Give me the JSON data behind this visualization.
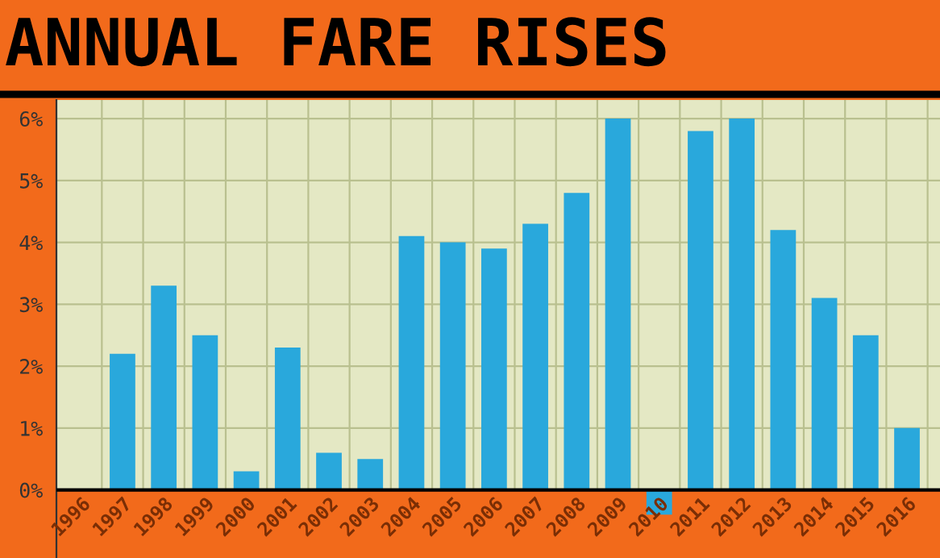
{
  "chart_data": {
    "type": "bar",
    "title": "ANNUAL FARE RISES",
    "categories": [
      "1996",
      "1997",
      "1998",
      "1999",
      "2000",
      "2001",
      "2002",
      "2003",
      "2004",
      "2005",
      "2006",
      "2007",
      "2008",
      "2009",
      "2010",
      "2011",
      "2012",
      "2013",
      "2014",
      "2015",
      "2016"
    ],
    "series": [
      {
        "color": "#29a8dc",
        "values": [
          null,
          2.2,
          3.3,
          2.5,
          0.3,
          2.3,
          0.6,
          0.5,
          4.1,
          4.0,
          3.9,
          4.3,
          4.8,
          6.0,
          -0.4,
          5.8,
          6.0,
          4.2,
          3.1,
          2.5,
          1.0
        ]
      }
    ],
    "ylim": [
      -1.1,
      6.3
    ],
    "yticks": [
      {
        "value": 0,
        "label": "0%"
      },
      {
        "value": 1,
        "label": "1%"
      },
      {
        "value": 2,
        "label": "2%"
      },
      {
        "value": 3,
        "label": "3%"
      },
      {
        "value": 4,
        "label": "4%"
      },
      {
        "value": 5,
        "label": "5%"
      },
      {
        "value": 6,
        "label": "6%"
      }
    ],
    "bands": [
      {
        "axis": "y",
        "from": -1.1,
        "to": 0,
        "color": "#f26a1b"
      }
    ],
    "grid": true
  }
}
